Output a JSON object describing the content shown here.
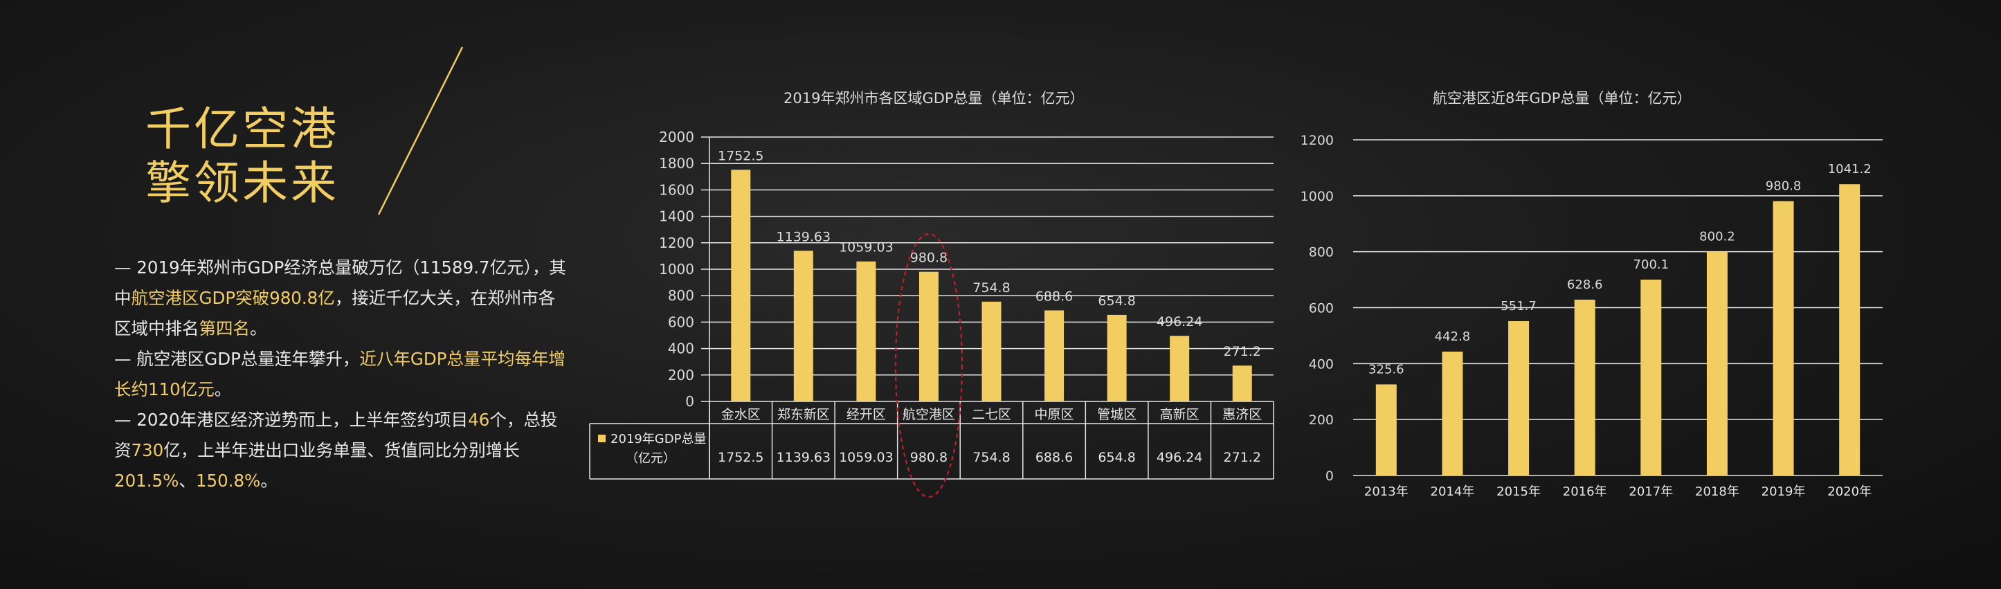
{
  "headline": {
    "line1": "千亿空港",
    "line2": "擎领未来"
  },
  "paragraphs": [
    [
      {
        "t": "— 2019年郑州市GDP经济总量破万亿（11589.7亿元），其中"
      },
      {
        "t": "航空港区GDP突破980.8亿",
        "hl": true
      },
      {
        "t": "，接近千亿大关，在郑州市各区域中排名"
      },
      {
        "t": "第四名",
        "hl": true
      },
      {
        "t": "。"
      }
    ],
    [
      {
        "t": "— 航空港区GDP总量连年攀升，"
      },
      {
        "t": "近八年GDP总量平均每年增长约110亿元",
        "hl": true
      },
      {
        "t": "。"
      }
    ],
    [
      {
        "t": "— 2020年港区经济逆势而上，上半年签约项目"
      },
      {
        "t": "46",
        "hl": true
      },
      {
        "t": "个，总投资"
      },
      {
        "t": "730",
        "hl": true
      },
      {
        "t": "亿，上半年进出口业务单量、货值同比分别增长"
      },
      {
        "t": "201.5%",
        "hl": true
      },
      {
        "t": "、"
      },
      {
        "t": "150.8%",
        "hl": true
      },
      {
        "t": "。"
      }
    ]
  ],
  "colors": {
    "accent": "#f2cd62",
    "bar": "#f2cd62",
    "highlight_ellipse": "#c0202a"
  },
  "chart_data": [
    {
      "type": "bar",
      "title": "2019年郑州市各区域GDP总量（单位：亿元）",
      "categories": [
        "金水区",
        "郑东新区",
        "经开区",
        "航空港区",
        "二七区",
        "中原区",
        "管城区",
        "高新区",
        "惠济区"
      ],
      "values": [
        1752.5,
        1139.63,
        1059.03,
        980.8,
        754.8,
        688.6,
        654.8,
        496.24,
        271.2
      ],
      "value_labels": [
        "1752.5",
        "1139.63",
        "1059.03",
        "980.8",
        "754.8",
        "688.6",
        "654.8",
        "496.24",
        "271.2"
      ],
      "ylim": [
        0,
        2000
      ],
      "yticks": [
        0,
        200,
        400,
        600,
        800,
        1000,
        1200,
        1400,
        1600,
        1800,
        2000
      ],
      "grid": true,
      "data_table": true,
      "series_label": "2019年GDP总量（亿元）",
      "highlight_category": "航空港区"
    },
    {
      "type": "bar",
      "title": "航空港区近8年GDP总量（单位：亿元）",
      "categories": [
        "2013年",
        "2014年",
        "2015年",
        "2016年",
        "2017年",
        "2018年",
        "2019年",
        "2020年"
      ],
      "values": [
        325.6,
        442.8,
        551.7,
        628.6,
        700.1,
        800.2,
        980.8,
        1041.2
      ],
      "value_labels": [
        "325.6",
        "442.8",
        "551.7",
        "628.6",
        "700.1",
        "800.2",
        "980.8",
        "1041.2"
      ],
      "ylim": [
        0,
        1200
      ],
      "yticks": [
        0,
        200,
        400,
        600,
        800,
        1000,
        1200
      ],
      "grid": true
    }
  ]
}
